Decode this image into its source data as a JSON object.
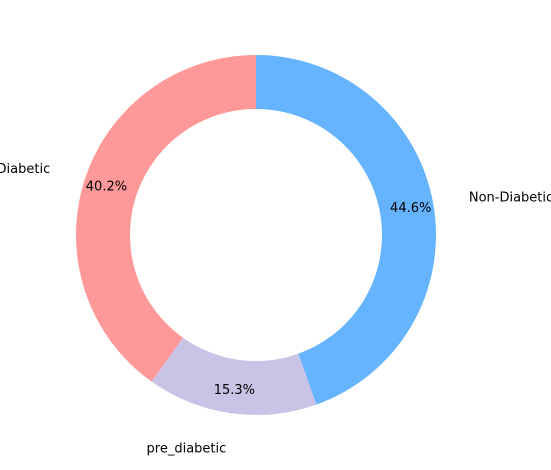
{
  "chart_data": {
    "type": "pie",
    "donut": true,
    "start_angle_deg": 90,
    "direction": "clockwise",
    "slices": [
      {
        "label": "Non-Diabetic",
        "value": 44.6,
        "pct_label": "44.6%",
        "color": "#66b3ff"
      },
      {
        "label": "pre_diabetic",
        "value": 15.3,
        "pct_label": "15.3%",
        "color": "#c9c3e5"
      },
      {
        "label": "Diabetic",
        "value": 40.2,
        "pct_label": "40.2%",
        "color": "#ff9999"
      }
    ]
  }
}
